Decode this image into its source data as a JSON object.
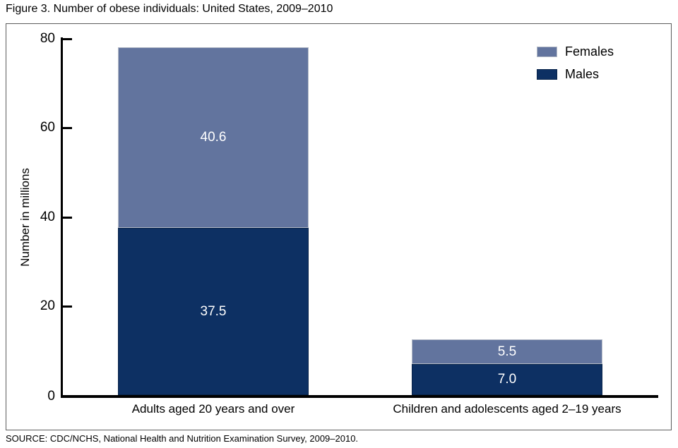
{
  "title": "Figure 3. Number of obese individuals: United States, 2009–2010",
  "source": "SOURCE: CDC/NCHS, National Health and Nutrition Examination Survey, 2009–2010.",
  "chart_data": {
    "type": "bar",
    "stacked": true,
    "title": "Figure 3. Number of obese individuals: United States, 2009–2010",
    "xlabel": "",
    "ylabel": "Number in millions",
    "ylim": [
      0,
      80
    ],
    "yticks": [
      0,
      20,
      40,
      60,
      80
    ],
    "grid": false,
    "legend_position": "top-right",
    "categories": [
      "Adults aged 20 years and over",
      "Children and adolescents aged 2–19 years"
    ],
    "series": [
      {
        "name": "Males",
        "color": "#0d3063",
        "values": [
          37.5,
          7.0
        ],
        "labels": [
          "37.5",
          "7.0"
        ]
      },
      {
        "name": "Females",
        "color": "#62749e",
        "values": [
          40.6,
          5.5
        ],
        "labels": [
          "40.6",
          "5.5"
        ]
      }
    ],
    "totals": [
      78.1,
      12.5
    ],
    "legend": [
      {
        "label": "Females",
        "color": "#62749e"
      },
      {
        "label": "Males",
        "color": "#0d3063"
      }
    ]
  }
}
